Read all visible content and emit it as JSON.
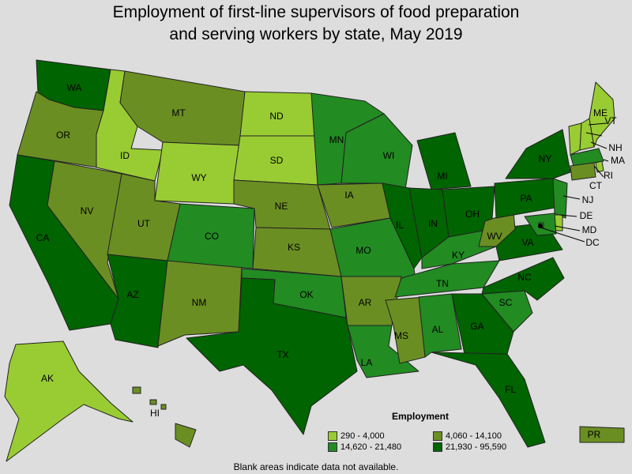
{
  "title_line1": "Employment of first-line supervisors of food preparation",
  "title_line2": "and serving workers by state, May 2019",
  "legend": {
    "title": "Employment",
    "items": [
      {
        "label": "290 - 4,000",
        "color": "#99cc33"
      },
      {
        "label": "4,060 - 14,100",
        "color": "#6b8e23"
      },
      {
        "label": "14,620 - 21,480",
        "color": "#228b22"
      },
      {
        "label": "21,930 - 95,590",
        "color": "#006400"
      }
    ]
  },
  "footnote": "Blank areas indicate data not available.",
  "states": {
    "WA": 4,
    "OR": 2,
    "CA": 4,
    "NV": 2,
    "ID": 1,
    "MT": 2,
    "WY": 1,
    "UT": 2,
    "AZ": 4,
    "NM": 2,
    "CO": 3,
    "ND": 1,
    "SD": 1,
    "NE": 2,
    "KS": 2,
    "OK": 3,
    "TX": 4,
    "MN": 3,
    "IA": 2,
    "MO": 3,
    "AR": 2,
    "LA": 3,
    "WI": 3,
    "IL": 4,
    "MI": 4,
    "IN": 4,
    "OH": 4,
    "KY": 3,
    "TN": 3,
    "MS": 2,
    "AL": 3,
    "GA": 4,
    "FL": 4,
    "SC": 3,
    "NC": 4,
    "VA": 4,
    "WV": 2,
    "PA": 4,
    "NY": 4,
    "VT": 1,
    "NH": 1,
    "ME": 1,
    "MA": 3,
    "RI": 1,
    "CT": 2,
    "NJ": 3,
    "DE": 1,
    "MD": 3,
    "DC": 3,
    "AK": 1,
    "HI": 2,
    "PR": 2
  }
}
